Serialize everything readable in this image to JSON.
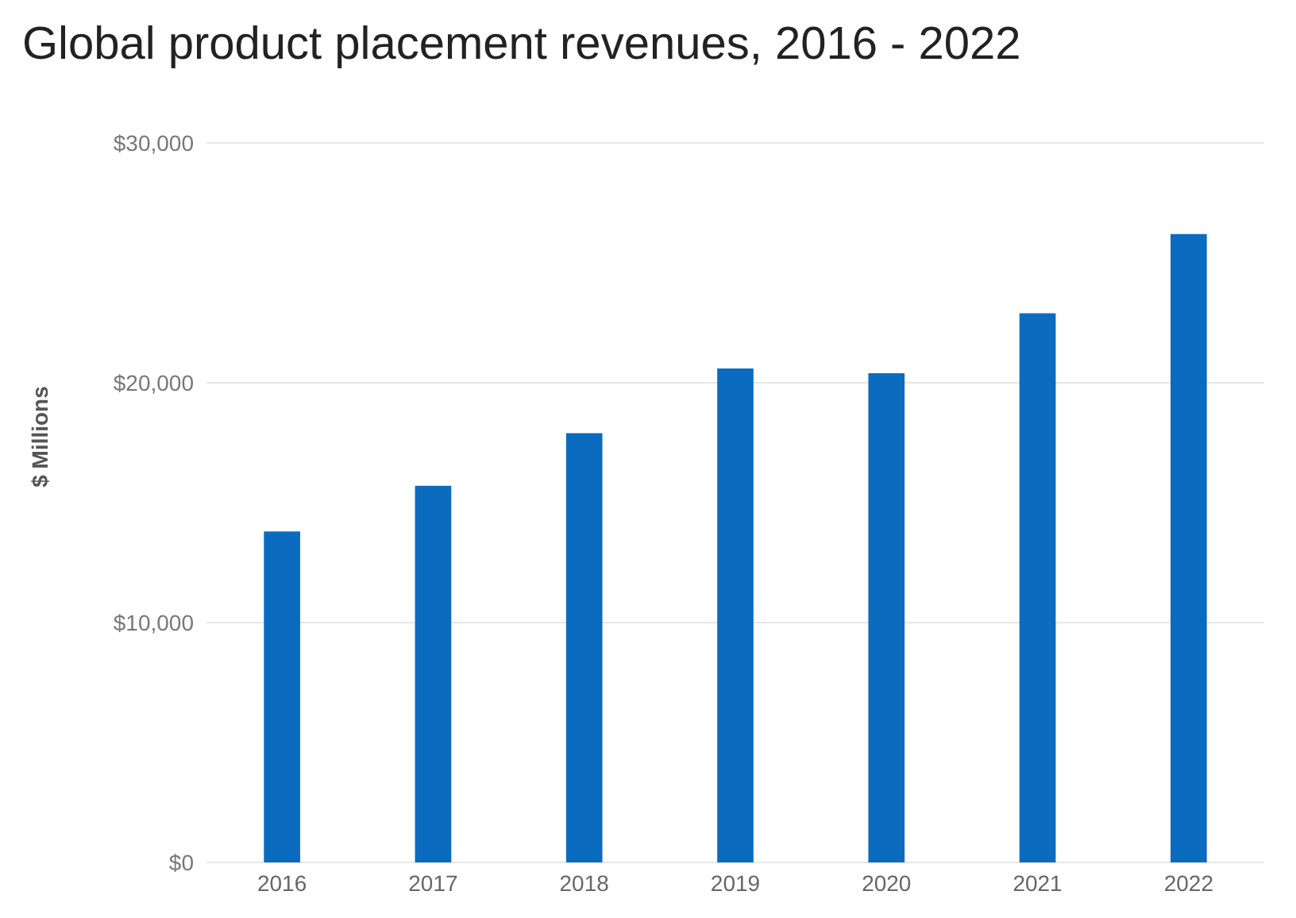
{
  "chart_data": {
    "type": "bar",
    "title": "Global product placement revenues, 2016 - 2022",
    "ylabel": "$ Millions",
    "categories": [
      "2016",
      "2017",
      "2018",
      "2019",
      "2020",
      "2021",
      "2022"
    ],
    "values": [
      13800,
      15700,
      17900,
      20600,
      20400,
      22900,
      26200
    ],
    "color": "#0b6bbf",
    "ylim": [
      0,
      30000
    ],
    "yticks": [
      {
        "value": 0,
        "label": "$0"
      },
      {
        "value": 10000,
        "label": "$10,000"
      },
      {
        "value": 20000,
        "label": "$20,000"
      },
      {
        "value": 30000,
        "label": "$30,000"
      }
    ],
    "grid": "y"
  }
}
